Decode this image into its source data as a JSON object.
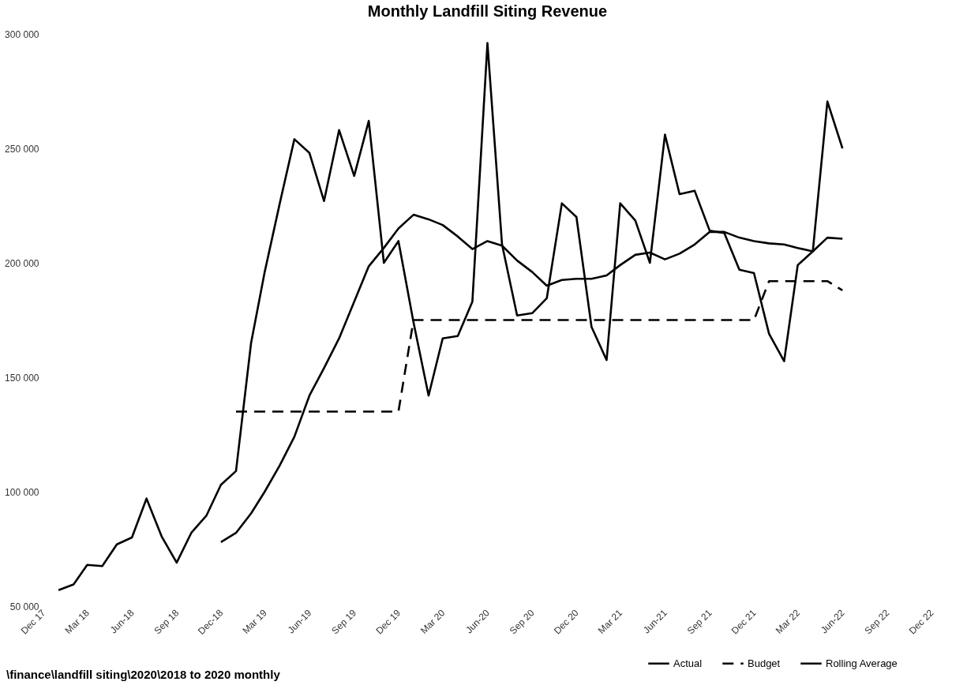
{
  "chart_data": {
    "type": "line",
    "title": "Monthly Landfill Siting Revenue",
    "x": [
      "2018-01",
      "2018-02",
      "2018-03",
      "2018-04",
      "2018-05",
      "2018-06",
      "2018-07",
      "2018-08",
      "2018-09",
      "2018-10",
      "2018-11",
      "2018-12",
      "2019-01",
      "2019-02",
      "2019-03",
      "2019-04",
      "2019-05",
      "2019-06",
      "2019-07",
      "2019-08",
      "2019-09",
      "2019-10",
      "2019-11",
      "2019-12",
      "2020-01",
      "2020-02",
      "2020-03",
      "2020-04",
      "2020-05",
      "2020-06",
      "2020-07",
      "2020-08",
      "2020-09",
      "2020-10",
      "2020-11",
      "2020-12",
      "2021-01",
      "2021-02",
      "2021-03",
      "2021-04",
      "2021-05",
      "2021-06",
      "2021-07",
      "2021-08",
      "2021-09",
      "2021-10",
      "2021-11",
      "2021-12",
      "2022-01",
      "2022-02",
      "2022-03",
      "2022-04",
      "2022-05",
      "2022-06"
    ],
    "series": [
      {
        "name": "Actual",
        "color": "#000000",
        "line_style": "solid",
        "values": [
          57000,
          59500,
          68000,
          67500,
          77000,
          80000,
          97000,
          80500,
          69000,
          82000,
          89500,
          103000,
          109000,
          165000,
          196000,
          226000,
          254000,
          248000,
          227000,
          258000,
          238000,
          262000,
          200000,
          209500,
          174000,
          142000,
          167000,
          168000,
          183000,
          296000,
          208000,
          177000,
          178000,
          184500,
          226000,
          220000,
          172000,
          157500,
          226000,
          218500,
          200000,
          256000,
          230000,
          231500,
          214000,
          213000,
          197000,
          195500,
          169000,
          157000,
          199000,
          205000,
          270500,
          250000
        ]
      },
      {
        "name": "Budget",
        "color": "#000000",
        "line_style": "dashed",
        "values": [
          null,
          null,
          null,
          null,
          null,
          null,
          null,
          null,
          null,
          null,
          null,
          null,
          135000,
          135000,
          135000,
          135000,
          135000,
          135000,
          135000,
          135000,
          135000,
          135000,
          135000,
          135000,
          175000,
          175000,
          175000,
          175000,
          175000,
          175000,
          175000,
          175000,
          175000,
          175000,
          175000,
          175000,
          175000,
          175000,
          175000,
          175000,
          175000,
          175000,
          175000,
          175000,
          175000,
          175000,
          175000,
          175000,
          192000,
          192000,
          192000,
          192000,
          192000,
          188000
        ]
      },
      {
        "name": "Rolling Average",
        "color": "#000000",
        "line_style": "solid",
        "values": [
          null,
          null,
          null,
          null,
          null,
          null,
          null,
          null,
          null,
          null,
          null,
          78000,
          82000,
          90500,
          100000,
          111500,
          124000,
          142000,
          154000,
          167000,
          183000,
          198500,
          206500,
          215000,
          221000,
          219000,
          216500,
          211500,
          206000,
          209500,
          207500,
          201000,
          196000,
          190000,
          192500,
          193000,
          193000,
          194500,
          199000,
          203500,
          204500,
          201500,
          204000,
          208000,
          213500,
          213500,
          211000,
          209500,
          208500,
          208000,
          206500,
          205000,
          211000,
          210500
        ]
      }
    ],
    "xlim": [
      "2017-12",
      "2022-12"
    ],
    "xticks": [
      {
        "value": "2017-12",
        "label": "Dec 17"
      },
      {
        "value": "2018-03",
        "label": "Mar 18"
      },
      {
        "value": "2018-06",
        "label": "Jun-18"
      },
      {
        "value": "2018-09",
        "label": "Sep 18"
      },
      {
        "value": "2018-12",
        "label": "Dec-18"
      },
      {
        "value": "2019-03",
        "label": "Mar 19"
      },
      {
        "value": "2019-06",
        "label": "Jun-19"
      },
      {
        "value": "2019-09",
        "label": "Sep 19"
      },
      {
        "value": "2019-12",
        "label": "Dec 19"
      },
      {
        "value": "2020-03",
        "label": "Mar 20"
      },
      {
        "value": "2020-06",
        "label": "Jun-20"
      },
      {
        "value": "2020-09",
        "label": "Sep 20"
      },
      {
        "value": "2020-12",
        "label": "Dec 20"
      },
      {
        "value": "2021-03",
        "label": "Mar 21"
      },
      {
        "value": "2021-06",
        "label": "Jun-21"
      },
      {
        "value": "2021-09",
        "label": "Sep 21"
      },
      {
        "value": "2021-12",
        "label": "Dec 21"
      },
      {
        "value": "2022-03",
        "label": "Mar 22"
      },
      {
        "value": "2022-06",
        "label": "Jun-22"
      },
      {
        "value": "2022-09",
        "label": "Sep 22"
      },
      {
        "value": "2022-12",
        "label": "Dec 22"
      }
    ],
    "ylim": [
      50000,
      300000
    ],
    "yticks": [
      {
        "value": 50000,
        "label": "50 000"
      },
      {
        "value": 100000,
        "label": "100 000"
      },
      {
        "value": 150000,
        "label": "150 000"
      },
      {
        "value": 200000,
        "label": "200 000"
      },
      {
        "value": 250000,
        "label": "250 000"
      },
      {
        "value": 300000,
        "label": "300 000"
      }
    ],
    "legend": "bottom right",
    "annotations": [
      "\\finance\\landfill siting\\2020\\2018 to 2020 monthly"
    ]
  }
}
